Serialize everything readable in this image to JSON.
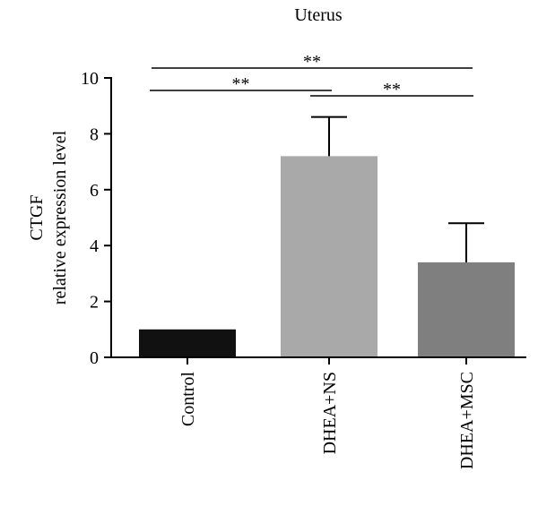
{
  "chart_data": {
    "type": "bar",
    "title": "Uterus",
    "ylabel_lines": [
      "CTGF",
      "relative expression level"
    ],
    "xlabel": "",
    "categories": [
      "Control",
      "DHEA+NS",
      "DHEA+MSC"
    ],
    "values": [
      1.0,
      7.2,
      3.4
    ],
    "errors": [
      0.0,
      1.4,
      1.4
    ],
    "bar_colors": [
      "#111111",
      "#a9a9a9",
      "#7f7f7f"
    ],
    "ylim": [
      0,
      10
    ],
    "yticks": [
      0,
      2,
      4,
      6,
      8,
      10
    ],
    "grid": false,
    "significance": [
      {
        "from": 0,
        "to": 2,
        "label": "**"
      },
      {
        "from": 0,
        "to": 1,
        "label": "**"
      },
      {
        "from": 1,
        "to": 2,
        "label": "**"
      }
    ]
  }
}
